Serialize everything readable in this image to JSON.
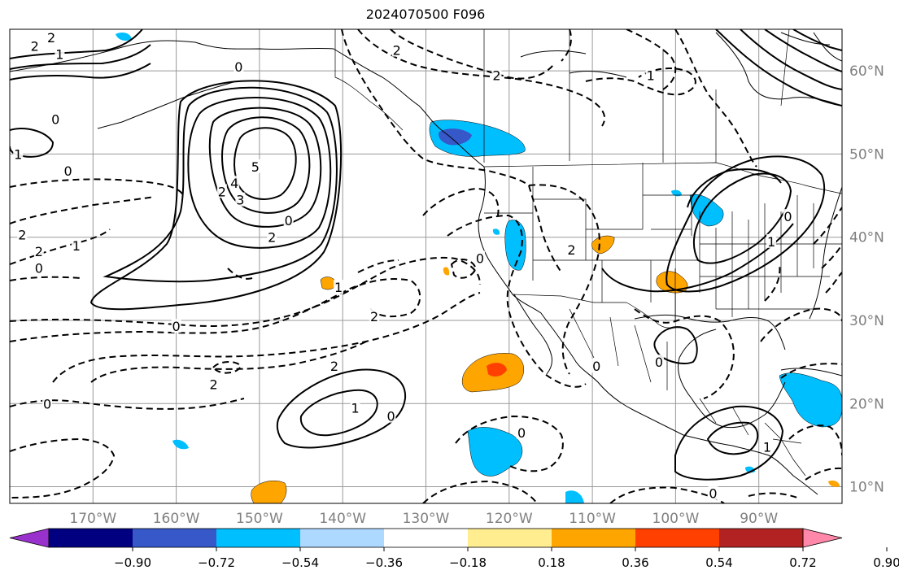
{
  "title": "2024070500 F096",
  "map": {
    "lon_range": [
      -180,
      -80
    ],
    "lat_range": [
      8,
      65
    ],
    "lon_ticks": [
      {
        "value": -170,
        "label": "170°W"
      },
      {
        "value": -160,
        "label": "160°W"
      },
      {
        "value": -150,
        "label": "150°W"
      },
      {
        "value": -140,
        "label": "140°W"
      },
      {
        "value": -130,
        "label": "130°W"
      },
      {
        "value": -120,
        "label": "120°W"
      },
      {
        "value": -110,
        "label": "110°W"
      },
      {
        "value": -100,
        "label": "100°W"
      },
      {
        "value": -90,
        "label": "90°W"
      }
    ],
    "lat_ticks": [
      {
        "value": 10,
        "label": "10°N"
      },
      {
        "value": 20,
        "label": "20°N"
      },
      {
        "value": 30,
        "label": "30°N"
      },
      {
        "value": 40,
        "label": "40°N"
      },
      {
        "value": 50,
        "label": "50°N"
      },
      {
        "value": 60,
        "label": "60°N"
      }
    ],
    "grid": true,
    "contour_labels": [
      {
        "text": "5",
        "lon": -150.5,
        "lat": 48.5
      },
      {
        "text": "4",
        "lon": -153,
        "lat": 46.5
      },
      {
        "text": "3",
        "lon": -152.3,
        "lat": 44.5
      },
      {
        "text": "2",
        "lon": -154.5,
        "lat": 45.5
      },
      {
        "text": "2",
        "lon": -148.5,
        "lat": 40
      },
      {
        "text": "0",
        "lon": -146.5,
        "lat": 42
      },
      {
        "text": "0",
        "lon": -152.5,
        "lat": 60.5
      },
      {
        "text": "2",
        "lon": -175,
        "lat": 64
      },
      {
        "text": "2",
        "lon": -177,
        "lat": 63
      },
      {
        "text": "1",
        "lon": -174,
        "lat": 62
      },
      {
        "text": "1",
        "lon": -179,
        "lat": 50
      },
      {
        "text": "0",
        "lon": -173,
        "lat": 48
      },
      {
        "text": "0",
        "lon": -174.5,
        "lat": 54.2
      },
      {
        "text": "2",
        "lon": -178.5,
        "lat": 40.3
      },
      {
        "text": "2",
        "lon": -176.5,
        "lat": 38.3
      },
      {
        "text": "1",
        "lon": -172,
        "lat": 39
      },
      {
        "text": "0",
        "lon": -176.5,
        "lat": 36.3
      },
      {
        "text": "0",
        "lon": -160,
        "lat": 29.3
      },
      {
        "text": "2",
        "lon": -155.5,
        "lat": 22.3
      },
      {
        "text": "2",
        "lon": -141,
        "lat": 24.5
      },
      {
        "text": "2",
        "lon": -136.2,
        "lat": 30.5
      },
      {
        "text": "1",
        "lon": -140.5,
        "lat": 34
      },
      {
        "text": "0",
        "lon": -175.5,
        "lat": 20
      },
      {
        "text": "1",
        "lon": -138.5,
        "lat": 19.5
      },
      {
        "text": "0",
        "lon": -134.2,
        "lat": 18.5
      },
      {
        "text": "0",
        "lon": -123.5,
        "lat": 37.5
      },
      {
        "text": "2",
        "lon": -133.5,
        "lat": 62.5
      },
      {
        "text": "2",
        "lon": -121.5,
        "lat": 59.5
      },
      {
        "text": "1",
        "lon": -103,
        "lat": 59.5
      },
      {
        "text": "2",
        "lon": -112.5,
        "lat": 38.5
      },
      {
        "text": "0",
        "lon": -109.5,
        "lat": 24.5
      },
      {
        "text": "0",
        "lon": -118.5,
        "lat": 16.5
      },
      {
        "text": "0",
        "lon": -102,
        "lat": 25
      },
      {
        "text": "0",
        "lon": -86.5,
        "lat": 42.5
      },
      {
        "text": "1",
        "lon": -88.5,
        "lat": 39.5
      },
      {
        "text": "1",
        "lon": -89,
        "lat": 14.8
      },
      {
        "text": "0",
        "lon": -95.5,
        "lat": 9.2
      }
    ]
  },
  "colorbar": {
    "colors": [
      "#9932cc",
      "#000080",
      "#3658c8",
      "#00bfff",
      "#add8ff",
      "#ffffff",
      "#ffed8f",
      "#ffa500",
      "#ff4000",
      "#b22222",
      "#ff88aa"
    ],
    "tick_values": [
      -0.9,
      -0.72,
      -0.54,
      -0.36,
      -0.18,
      0.18,
      0.36,
      0.54,
      0.72,
      0.9
    ],
    "tick_labels": [
      "−0.90",
      "−0.72",
      "−0.54",
      "−0.36",
      "−0.18",
      "0.18",
      "0.36",
      "0.54",
      "0.72",
      "0.90"
    ],
    "extend": "both"
  }
}
